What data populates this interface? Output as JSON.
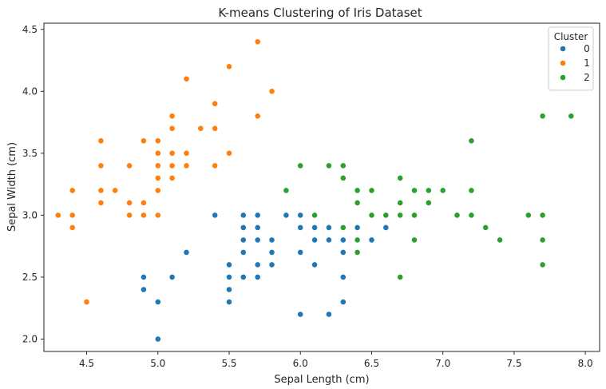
{
  "chart_data": {
    "type": "scatter",
    "title": "K-means Clustering of Iris Dataset",
    "xlabel": "Sepal Length (cm)",
    "ylabel": "Sepal Width (cm)",
    "xlim": [
      4.2,
      8.1
    ],
    "ylim": [
      1.9,
      4.55
    ],
    "xticks": [
      4.5,
      5.0,
      5.5,
      6.0,
      6.5,
      7.0,
      7.5,
      8.0
    ],
    "xtick_labels": [
      "4.5",
      "5.0",
      "5.5",
      "6.0",
      "6.5",
      "7.0",
      "7.5",
      "8.0"
    ],
    "yticks": [
      2.0,
      2.5,
      3.0,
      3.5,
      4.0,
      4.5
    ],
    "ytick_labels": [
      "2.0",
      "2.5",
      "3.0",
      "3.5",
      "4.0",
      "4.5"
    ],
    "grid": false,
    "legend": {
      "title": "Cluster",
      "position": "top-right"
    },
    "series": [
      {
        "name": "0",
        "color": "#1f77b4",
        "points": [
          [
            5.0,
            2.0
          ],
          [
            5.0,
            2.3
          ],
          [
            4.9,
            2.4
          ],
          [
            4.9,
            2.5
          ],
          [
            5.1,
            2.5
          ],
          [
            5.2,
            2.7
          ],
          [
            5.4,
            3.0
          ],
          [
            5.5,
            2.3
          ],
          [
            5.5,
            2.4
          ],
          [
            5.5,
            2.5
          ],
          [
            5.5,
            2.6
          ],
          [
            5.6,
            2.5
          ],
          [
            5.6,
            2.7
          ],
          [
            5.6,
            2.8
          ],
          [
            5.6,
            2.9
          ],
          [
            5.6,
            3.0
          ],
          [
            5.7,
            2.5
          ],
          [
            5.7,
            2.6
          ],
          [
            5.7,
            2.8
          ],
          [
            5.7,
            2.9
          ],
          [
            5.7,
            3.0
          ],
          [
            5.8,
            2.6
          ],
          [
            5.8,
            2.7
          ],
          [
            5.8,
            2.8
          ],
          [
            5.9,
            3.0
          ],
          [
            6.0,
            2.2
          ],
          [
            6.0,
            2.7
          ],
          [
            6.0,
            2.9
          ],
          [
            6.0,
            3.0
          ],
          [
            6.1,
            2.6
          ],
          [
            6.1,
            2.8
          ],
          [
            6.1,
            2.9
          ],
          [
            6.2,
            2.2
          ],
          [
            6.2,
            2.8
          ],
          [
            6.2,
            2.9
          ],
          [
            6.3,
            2.3
          ],
          [
            6.3,
            2.5
          ],
          [
            6.3,
            2.7
          ],
          [
            6.3,
            2.8
          ],
          [
            6.4,
            2.9
          ],
          [
            6.5,
            2.8
          ],
          [
            6.6,
            2.9
          ]
        ]
      },
      {
        "name": "1",
        "color": "#ff7f0e",
        "points": [
          [
            4.3,
            3.0
          ],
          [
            4.4,
            2.9
          ],
          [
            4.4,
            3.0
          ],
          [
            4.4,
            3.2
          ],
          [
            4.5,
            2.3
          ],
          [
            4.6,
            3.1
          ],
          [
            4.6,
            3.2
          ],
          [
            4.6,
            3.4
          ],
          [
            4.6,
            3.6
          ],
          [
            4.7,
            3.2
          ],
          [
            4.8,
            3.0
          ],
          [
            4.8,
            3.1
          ],
          [
            4.8,
            3.4
          ],
          [
            4.9,
            3.0
          ],
          [
            4.9,
            3.1
          ],
          [
            4.9,
            3.6
          ],
          [
            5.0,
            3.0
          ],
          [
            5.0,
            3.2
          ],
          [
            5.0,
            3.3
          ],
          [
            5.0,
            3.4
          ],
          [
            5.0,
            3.5
          ],
          [
            5.0,
            3.6
          ],
          [
            5.1,
            3.3
          ],
          [
            5.1,
            3.4
          ],
          [
            5.1,
            3.5
          ],
          [
            5.1,
            3.7
          ],
          [
            5.1,
            3.8
          ],
          [
            5.2,
            3.4
          ],
          [
            5.2,
            3.5
          ],
          [
            5.2,
            4.1
          ],
          [
            5.3,
            3.7
          ],
          [
            5.4,
            3.4
          ],
          [
            5.4,
            3.7
          ],
          [
            5.4,
            3.9
          ],
          [
            5.5,
            3.5
          ],
          [
            5.5,
            4.2
          ],
          [
            5.7,
            3.8
          ],
          [
            5.7,
            4.4
          ],
          [
            5.8,
            4.0
          ]
        ]
      },
      {
        "name": "2",
        "color": "#2ca02c",
        "points": [
          [
            5.9,
            3.2
          ],
          [
            6.0,
            3.4
          ],
          [
            6.1,
            3.0
          ],
          [
            6.2,
            3.4
          ],
          [
            6.3,
            2.9
          ],
          [
            6.3,
            3.3
          ],
          [
            6.3,
            3.4
          ],
          [
            6.4,
            2.7
          ],
          [
            6.4,
            2.8
          ],
          [
            6.4,
            3.1
          ],
          [
            6.4,
            3.2
          ],
          [
            6.5,
            3.0
          ],
          [
            6.5,
            3.2
          ],
          [
            6.6,
            3.0
          ],
          [
            6.7,
            2.5
          ],
          [
            6.7,
            3.0
          ],
          [
            6.7,
            3.1
          ],
          [
            6.7,
            3.3
          ],
          [
            6.8,
            2.8
          ],
          [
            6.8,
            3.0
          ],
          [
            6.8,
            3.2
          ],
          [
            6.9,
            3.1
          ],
          [
            6.9,
            3.2
          ],
          [
            7.0,
            3.2
          ],
          [
            7.1,
            3.0
          ],
          [
            7.2,
            3.0
          ],
          [
            7.2,
            3.2
          ],
          [
            7.2,
            3.6
          ],
          [
            7.3,
            2.9
          ],
          [
            7.4,
            2.8
          ],
          [
            7.6,
            3.0
          ],
          [
            7.7,
            2.6
          ],
          [
            7.7,
            2.8
          ],
          [
            7.7,
            3.0
          ],
          [
            7.7,
            3.8
          ],
          [
            7.9,
            3.8
          ]
        ]
      }
    ]
  }
}
